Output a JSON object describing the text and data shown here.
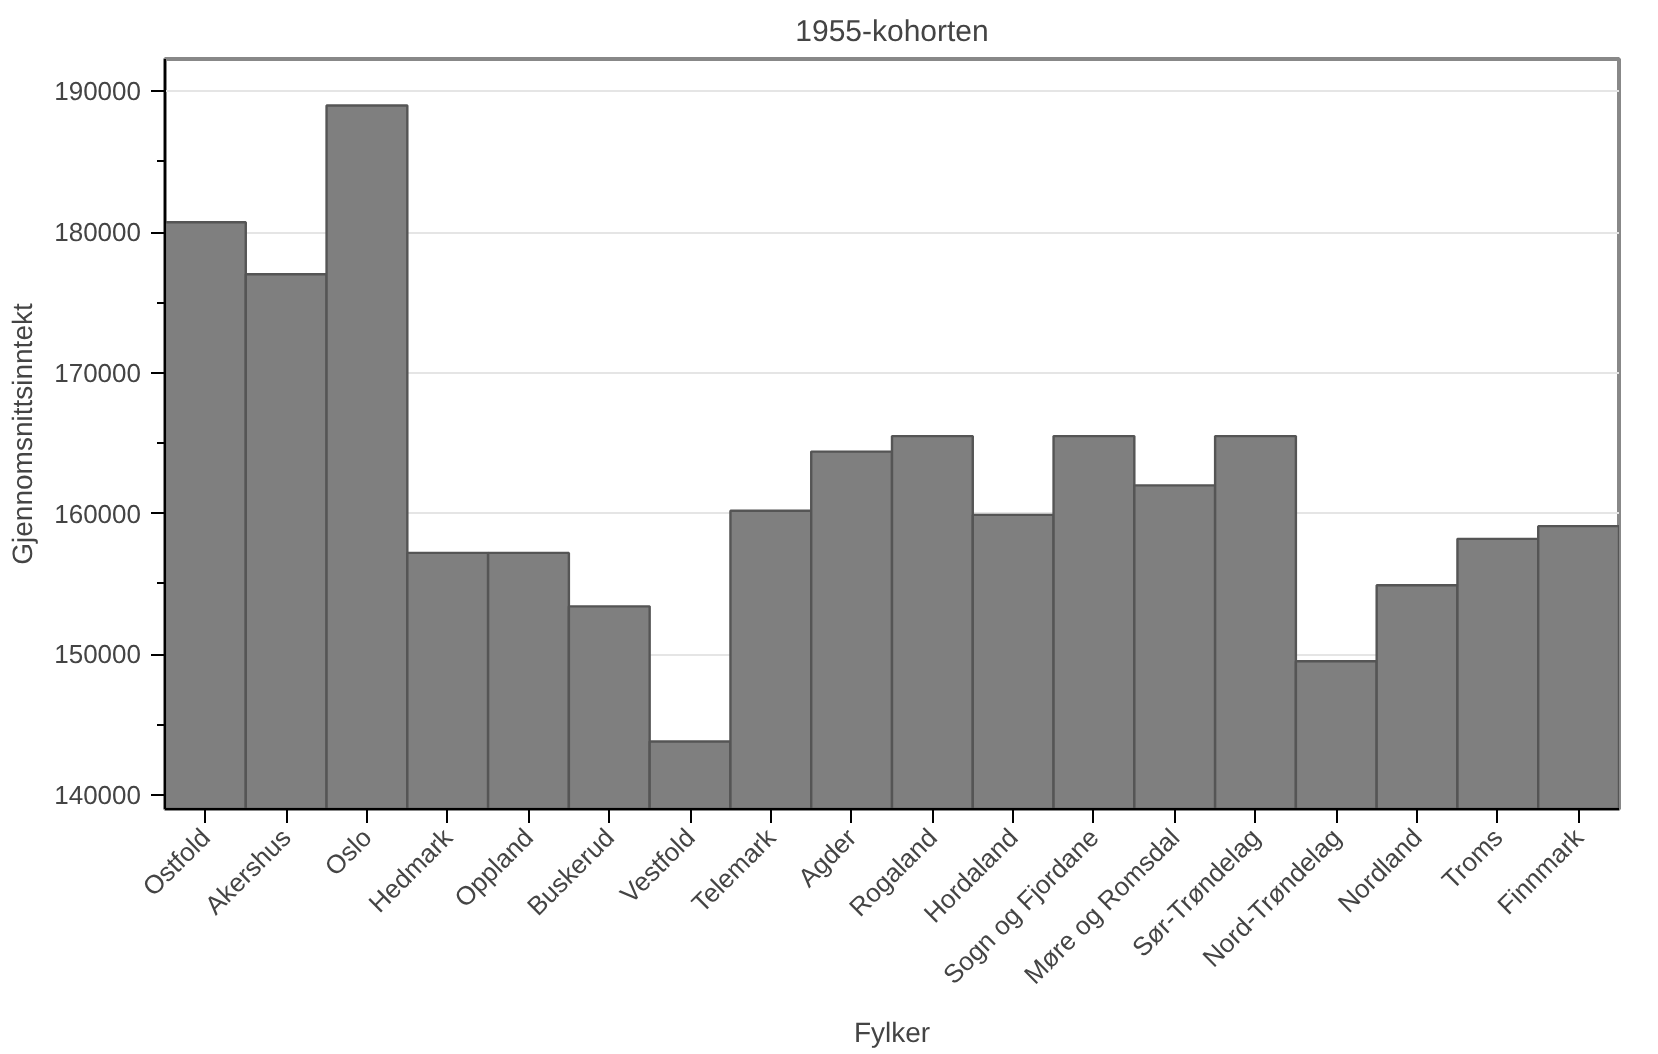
{
  "chart_data": {
    "type": "bar",
    "subtitle": "1955-kohorten",
    "xlabel": "Fylker",
    "ylabel": "Gjennomsnittsinntekt",
    "categories": [
      "Ostfold",
      "Akershus",
      "Oslo",
      "Hedmark",
      "Oppland",
      "Buskerud",
      "Vestfold",
      "Telemark",
      "Agder",
      "Rogaland",
      "Hordaland",
      "Sogn og Fjordane",
      "Møre og Romsdal",
      "Sør-Trøndelag",
      "Nord-Trøndelag",
      "Nordland",
      "Troms",
      "Finnmark"
    ],
    "values": [
      180700,
      177000,
      189000,
      157200,
      157200,
      153400,
      143800,
      160200,
      164400,
      165500,
      159900,
      165500,
      162000,
      165500,
      149500,
      154900,
      158200,
      159100
    ],
    "color": "#7f7f7f",
    "ylim": [
      139000,
      192300
    ],
    "yticks": [
      140000,
      {
        "value": 145000,
        "label": null
      },
      150000,
      {
        "value": 155000,
        "label": null
      },
      160000,
      {
        "value": 165000,
        "label": null
      },
      170000,
      {
        "value": 175000,
        "label": null
      },
      180000,
      {
        "value": 185000,
        "label": null
      },
      190000
    ],
    "grid": "y"
  }
}
